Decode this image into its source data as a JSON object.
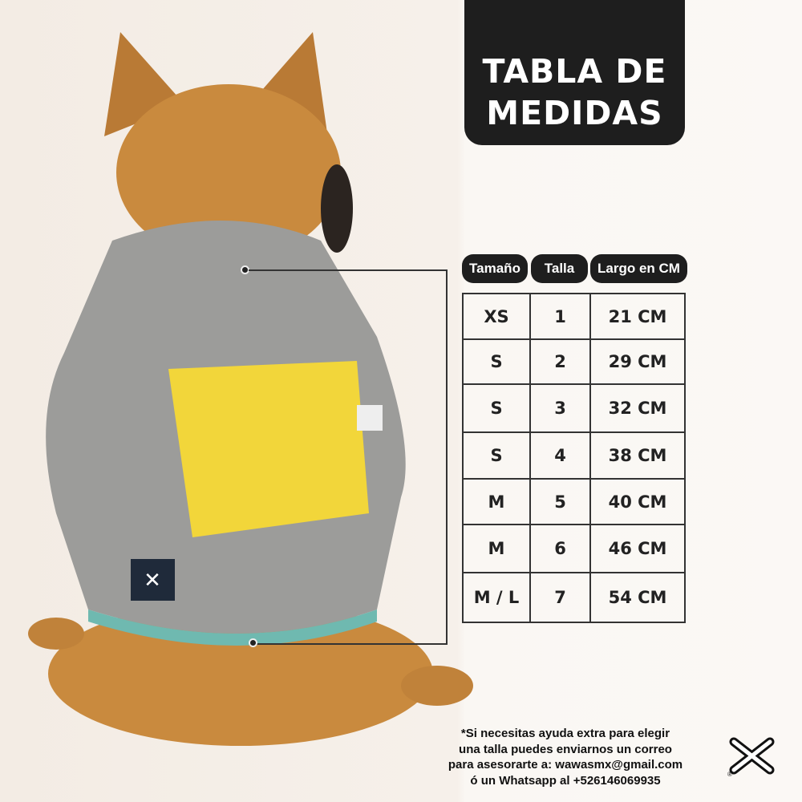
{
  "title": {
    "line1": "TABLA DE",
    "line2": "MEDIDAS"
  },
  "table": {
    "headers": [
      "Tamaño",
      "Talla",
      "Largo en CM"
    ],
    "rows": [
      [
        "XS",
        "1",
        "21 CM"
      ],
      [
        "S",
        "2",
        "29 CM"
      ],
      [
        "S",
        "3",
        "32 CM"
      ],
      [
        "S",
        "4",
        "38 CM"
      ],
      [
        "M",
        "5",
        "40 CM"
      ],
      [
        "M",
        "6",
        "46 CM"
      ],
      [
        "M / L",
        "7",
        "54 CM"
      ]
    ]
  },
  "note": {
    "lines": [
      "*Si necesitas ayuda extra para elegir",
      "una talla puedes enviarnos un correo",
      "para asesorarte a: wawasmx@gmail.com",
      "ó un Whatsapp al +526146069935"
    ]
  },
  "logo": {
    "icon": "crossbones-logo",
    "mark": "®"
  },
  "colors": {
    "dog": "#c98a3e",
    "sweater": "#9a9a98",
    "patch": "#f2d63a",
    "trim": "#6fb9b0",
    "dark": "#1e1e1e"
  }
}
